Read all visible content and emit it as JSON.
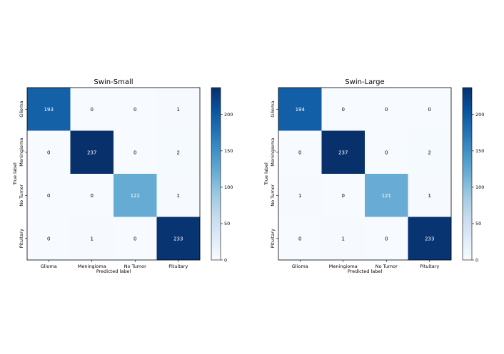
{
  "chart_data": [
    {
      "type": "heatmap",
      "title": "Swin-Small",
      "xlabel": "Predicted label",
      "ylabel": "True label",
      "x_categories": [
        "Glioma",
        "Meningioma",
        "No Tumor",
        "Pituitary"
      ],
      "y_categories": [
        "Glioma",
        "Meningioma",
        "No Tumor",
        "Pituitary"
      ],
      "matrix": [
        [
          193,
          0,
          0,
          1
        ],
        [
          0,
          237,
          0,
          2
        ],
        [
          0,
          0,
          122,
          1
        ],
        [
          0,
          1,
          0,
          233
        ]
      ],
      "colorbar": {
        "colormap": "Blues",
        "min": 0,
        "max": 237,
        "ticks": [
          0,
          50,
          100,
          150,
          200
        ]
      }
    },
    {
      "type": "heatmap",
      "title": "Swin-Large",
      "xlabel": "Predicted label",
      "ylabel": "True label",
      "x_categories": [
        "Glioma",
        "Meningioma",
        "No Tumor",
        "Pituitary"
      ],
      "y_categories": [
        "Glioma",
        "Meningioma",
        "No Tumor",
        "Pituitary"
      ],
      "matrix": [
        [
          194,
          0,
          0,
          0
        ],
        [
          0,
          237,
          0,
          2
        ],
        [
          1,
          0,
          121,
          1
        ],
        [
          0,
          1,
          0,
          233
        ]
      ],
      "colorbar": {
        "colormap": "Blues",
        "min": 0,
        "max": 237,
        "ticks": [
          0,
          50,
          100,
          150,
          200
        ]
      }
    }
  ]
}
